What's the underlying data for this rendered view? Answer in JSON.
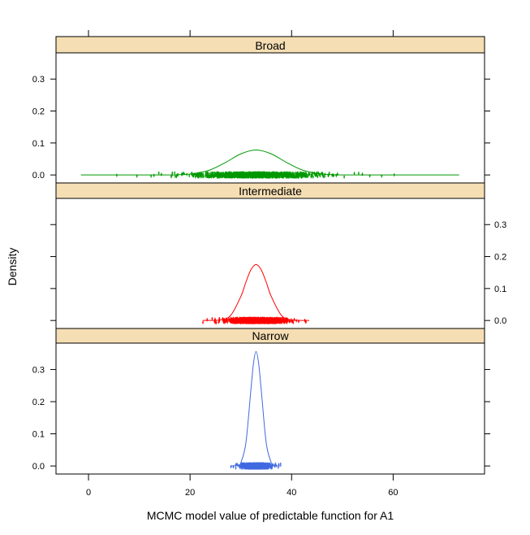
{
  "chart_data": {
    "type": "line",
    "subtype": "lattice density plot with jittered rug points",
    "xlabel": "MCMC model value of predictable function for A1",
    "ylabel": "Density",
    "xlim": [
      -6.4,
      78
    ],
    "ylim": [
      -0.025,
      0.382
    ],
    "x_ticks": [
      0,
      20,
      40,
      60
    ],
    "x_tick_labels": [
      "0",
      "20",
      "40",
      "60"
    ],
    "y_ticks": [
      0,
      0.1,
      0.2,
      0.3
    ],
    "y_tick_labels": [
      "0.0",
      "0.1",
      "0.2",
      "0.3"
    ],
    "grid": false,
    "strip_color": "#f5deb3",
    "panels": [
      {
        "name": "Broad",
        "color": "#009900",
        "y_axis_side": "left",
        "x": [
          -1.5,
          15,
          18,
          21,
          24,
          27,
          30,
          33,
          36,
          39,
          42,
          45,
          48,
          51,
          73
        ],
        "density": [
          0,
          0.0002,
          0.001,
          0.005,
          0.016,
          0.039,
          0.066,
          0.078,
          0.066,
          0.039,
          0.016,
          0.005,
          0.001,
          0.0002,
          0
        ]
      },
      {
        "name": "Intermediate",
        "color": "#ff0000",
        "y_axis_side": "right",
        "x": [
          22.5,
          26,
          28,
          30,
          31,
          32,
          33,
          34,
          35,
          36,
          38,
          40,
          43.5
        ],
        "density": [
          0,
          0.002,
          0.016,
          0.075,
          0.12,
          0.159,
          0.175,
          0.159,
          0.12,
          0.075,
          0.016,
          0.002,
          0
        ]
      },
      {
        "name": "Narrow",
        "color": "#4169e1",
        "y_axis_side": "left",
        "x": [
          28,
          29.5,
          30,
          31,
          32,
          32.5,
          33,
          33.5,
          34,
          35,
          36,
          36.5,
          38
        ],
        "density": [
          0,
          0.002,
          0.01,
          0.072,
          0.24,
          0.32,
          0.356,
          0.32,
          0.24,
          0.072,
          0.01,
          0.002,
          0
        ]
      }
    ]
  }
}
